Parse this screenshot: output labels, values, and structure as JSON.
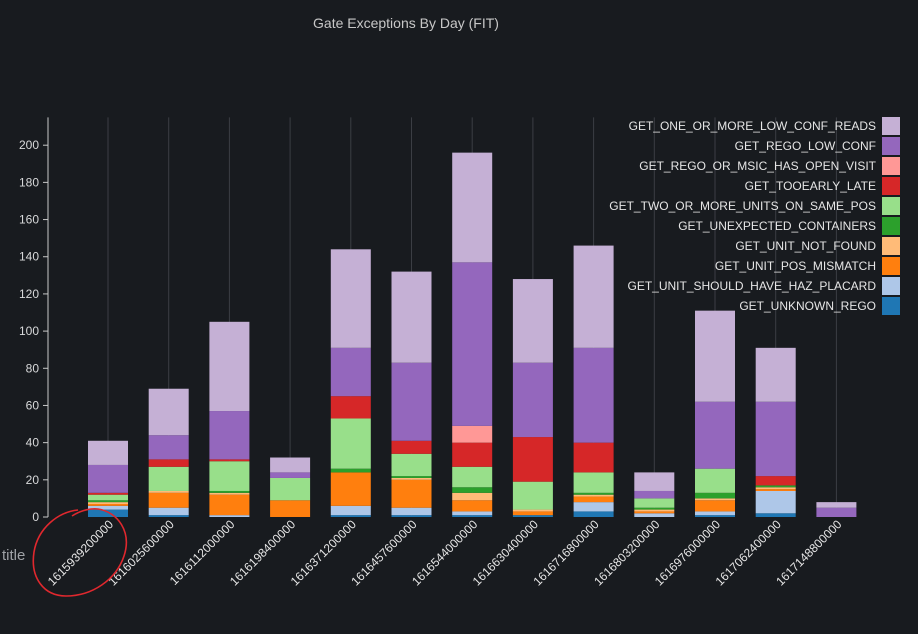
{
  "chart_data": {
    "type": "bar",
    "stacked": true,
    "title": "Gate Exceptions By Day (FIT)",
    "xlabel": "",
    "ylabel": "",
    "ylim": [
      0,
      215
    ],
    "yticks": [
      0,
      20,
      40,
      60,
      80,
      100,
      120,
      140,
      160,
      180,
      200
    ],
    "legend_position": "top-right",
    "grid": "vertical",
    "categories": [
      "1615939200000",
      "1616025600000",
      "1616112000000",
      "1616198400000",
      "1616371200000",
      "1616457600000",
      "1616544000000",
      "1616630400000",
      "1616716800000",
      "1616803200000",
      "1616976000000",
      "1617062400000",
      "1617148800000"
    ],
    "series": [
      {
        "name": "GET_UNKNOWN_REGO",
        "color": "#1f77b4",
        "values": [
          4,
          1,
          0,
          0,
          1,
          1,
          1,
          1,
          3,
          0,
          1,
          2,
          0
        ]
      },
      {
        "name": "GET_UNIT_SHOULD_HAVE_HAZ_PLACARD",
        "color": "#aec7e8",
        "values": [
          2,
          4,
          1,
          0,
          5,
          4,
          2,
          0,
          5,
          2,
          2,
          12,
          0
        ]
      },
      {
        "name": "GET_UNIT_POS_MISMATCH",
        "color": "#ff7f0e",
        "values": [
          1,
          8,
          11,
          9,
          18,
          15,
          6,
          2,
          3,
          1,
          6,
          1,
          0
        ]
      },
      {
        "name": "GET_UNIT_NOT_FOUND",
        "color": "#ffbb78",
        "values": [
          1,
          1,
          1,
          0,
          0,
          1,
          4,
          1,
          1,
          1,
          1,
          1,
          0
        ]
      },
      {
        "name": "GET_UNEXPECTED_CONTAINERS",
        "color": "#2ca02c",
        "values": [
          1,
          0,
          1,
          0,
          2,
          1,
          3,
          0,
          1,
          1,
          3,
          1,
          0
        ]
      },
      {
        "name": "GET_TWO_OR_MORE_UNITS_ON_SAME_POS",
        "color": "#98df8a",
        "values": [
          3,
          13,
          16,
          12,
          27,
          12,
          11,
          15,
          11,
          5,
          13,
          0,
          0
        ]
      },
      {
        "name": "GET_TOOEARLY_LATE",
        "color": "#d62728",
        "values": [
          1,
          4,
          1,
          0,
          12,
          7,
          13,
          24,
          16,
          0,
          0,
          5,
          0
        ]
      },
      {
        "name": "GET_REGO_OR_MSIC_HAS_OPEN_VISIT",
        "color": "#ff9896",
        "values": [
          0,
          0,
          0,
          0,
          0,
          0,
          9,
          0,
          0,
          0,
          0,
          0,
          0
        ]
      },
      {
        "name": "GET_REGO_LOW_CONF",
        "color": "#9467bd",
        "values": [
          15,
          13,
          26,
          3,
          26,
          42,
          88,
          40,
          51,
          4,
          36,
          40,
          5
        ]
      },
      {
        "name": "GET_ONE_OR_MORE_LOW_CONF_READS",
        "color": "#c5b0d5",
        "values": [
          13,
          25,
          48,
          8,
          53,
          49,
          59,
          45,
          55,
          10,
          49,
          29,
          3
        ]
      }
    ],
    "stray_label": "title"
  }
}
